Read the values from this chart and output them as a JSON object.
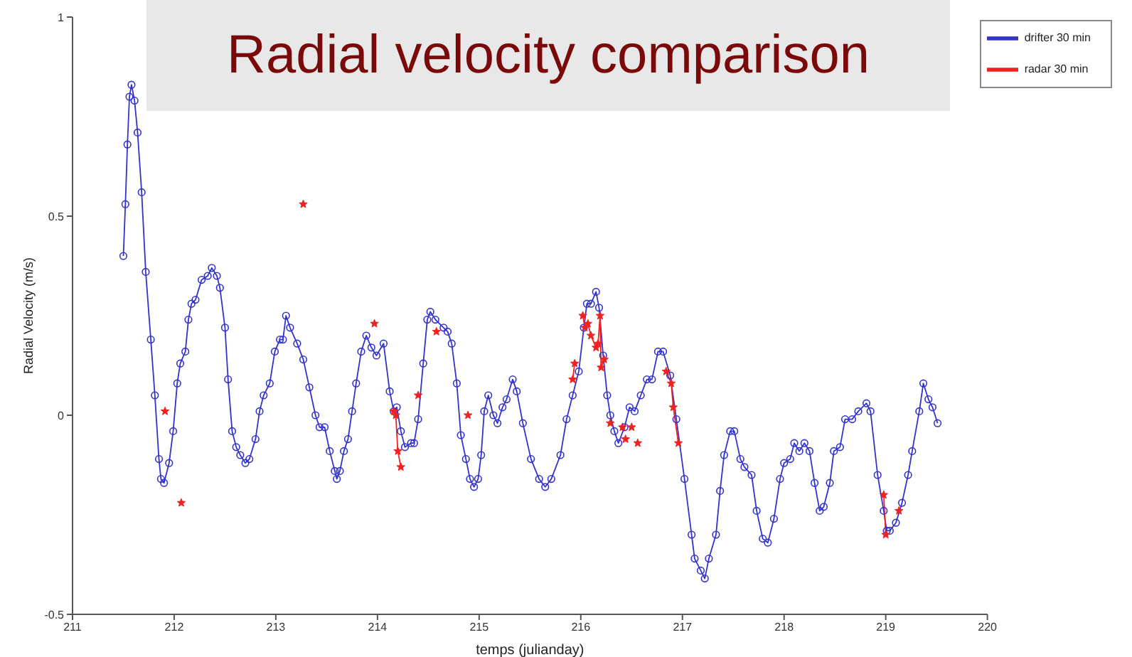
{
  "chart_data": {
    "type": "line",
    "title": "Radial velocity comparison",
    "xlabel": "temps (julianday)",
    "ylabel": "Radial Velocity (m/s)",
    "xlim": [
      211,
      220
    ],
    "xticks": [
      211,
      212,
      213,
      214,
      215,
      216,
      217,
      218,
      219,
      220
    ],
    "ylim": [
      -0.5,
      1
    ],
    "yticks": [
      -0.5,
      0,
      0.5,
      1
    ],
    "legend": "top right",
    "line_style": "solid",
    "series": [
      {
        "name": "drifter 30 min",
        "color": "#3333cc",
        "marker": "circle",
        "x": [
          211.5,
          211.52,
          211.54,
          211.56,
          211.58,
          211.61,
          211.64,
          211.68,
          211.72,
          211.77,
          211.81,
          211.85,
          211.87,
          211.9,
          211.95,
          211.99,
          212.03,
          212.06,
          212.11,
          212.14,
          212.17,
          212.21,
          212.27,
          212.33,
          212.37,
          212.42,
          212.45,
          212.5,
          212.53,
          212.57,
          212.61,
          212.65,
          212.7,
          212.74,
          212.8,
          212.84,
          212.88,
          212.94,
          212.99,
          213.04,
          213.07,
          213.1,
          213.14,
          213.21,
          213.27,
          213.33,
          213.39,
          213.43,
          213.48,
          213.53,
          213.58,
          213.6,
          213.63,
          213.67,
          213.71,
          213.75,
          213.79,
          213.84,
          213.89,
          213.94,
          213.99,
          214.06,
          214.12,
          214.16,
          214.19,
          214.23,
          214.27,
          214.33,
          214.36,
          214.4,
          214.45,
          214.49,
          214.52,
          214.57,
          214.65,
          214.69,
          214.73,
          214.78,
          214.82,
          214.87,
          214.91,
          214.95,
          214.99,
          215.02,
          215.05,
          215.09,
          215.14,
          215.18,
          215.23,
          215.27,
          215.33,
          215.37,
          215.43,
          215.51,
          215.59,
          215.65,
          215.71,
          215.8,
          215.86,
          215.92,
          215.98,
          216.03,
          216.06,
          216.1,
          216.15,
          216.18,
          216.22,
          216.26,
          216.29,
          216.33,
          216.37,
          216.43,
          216.48,
          216.53,
          216.59,
          216.65,
          216.7,
          216.76,
          216.81,
          216.88,
          216.94,
          217.02,
          217.09,
          217.12,
          217.18,
          217.22,
          217.26,
          217.33,
          217.37,
          217.41,
          217.47,
          217.51,
          217.57,
          217.61,
          217.68,
          217.73,
          217.79,
          217.84,
          217.9,
          217.96,
          218.0,
          218.06,
          218.1,
          218.15,
          218.2,
          218.25,
          218.3,
          218.35,
          218.39,
          218.45,
          218.49,
          218.55,
          218.6,
          218.67,
          218.73,
          218.81,
          218.85,
          218.92,
          218.98,
          219.01,
          219.04,
          219.1,
          219.16,
          219.22,
          219.26,
          219.33,
          219.37,
          219.42,
          219.46,
          219.51
        ],
        "values": [
          0.4,
          0.53,
          0.68,
          0.8,
          0.83,
          0.79,
          0.71,
          0.56,
          0.36,
          0.19,
          0.05,
          -0.11,
          -0.16,
          -0.17,
          -0.12,
          -0.04,
          0.08,
          0.13,
          0.16,
          0.24,
          0.28,
          0.29,
          0.34,
          0.35,
          0.37,
          0.35,
          0.32,
          0.22,
          0.09,
          -0.04,
          -0.08,
          -0.1,
          -0.12,
          -0.11,
          -0.06,
          0.01,
          0.05,
          0.08,
          0.16,
          0.19,
          0.19,
          0.25,
          0.22,
          0.18,
          0.14,
          0.07,
          0.0,
          -0.03,
          -0.03,
          -0.09,
          -0.14,
          -0.16,
          -0.14,
          -0.09,
          -0.06,
          0.01,
          0.08,
          0.16,
          0.2,
          0.17,
          0.15,
          0.18,
          0.06,
          0.01,
          0.02,
          -0.04,
          -0.08,
          -0.07,
          -0.07,
          -0.01,
          0.13,
          0.24,
          0.26,
          0.24,
          0.22,
          0.21,
          0.18,
          0.08,
          -0.05,
          -0.11,
          -0.16,
          -0.18,
          -0.16,
          -0.1,
          0.01,
          0.05,
          0.0,
          -0.02,
          0.02,
          0.04,
          0.09,
          0.06,
          -0.02,
          -0.11,
          -0.16,
          -0.18,
          -0.16,
          -0.1,
          -0.01,
          0.05,
          0.11,
          0.22,
          0.28,
          0.28,
          0.31,
          0.27,
          0.15,
          0.05,
          0.0,
          -0.04,
          -0.07,
          -0.03,
          0.02,
          0.01,
          0.05,
          0.09,
          0.09,
          0.16,
          0.16,
          0.1,
          -0.01,
          -0.16,
          -0.3,
          -0.36,
          -0.39,
          -0.41,
          -0.36,
          -0.3,
          -0.19,
          -0.1,
          -0.04,
          -0.04,
          -0.11,
          -0.13,
          -0.15,
          -0.24,
          -0.31,
          -0.32,
          -0.26,
          -0.16,
          -0.12,
          -0.11,
          -0.07,
          -0.09,
          -0.07,
          -0.09,
          -0.17,
          -0.24,
          -0.23,
          -0.17,
          -0.09,
          -0.08,
          -0.01,
          -0.01,
          0.01,
          0.03,
          0.01,
          -0.15,
          -0.24,
          -0.29,
          -0.29,
          -0.27,
          -0.22,
          -0.15,
          -0.09,
          0.01,
          0.08,
          0.04,
          0.02,
          -0.02
        ]
      },
      {
        "name": "radar 30 min",
        "color": "#ee2222",
        "marker": "star",
        "x": [
          211.91,
          211.99,
          212.07,
          212.6,
          213.27,
          213.6,
          213.97,
          214.05,
          214.16,
          214.18,
          214.2,
          214.23,
          214.3,
          214.4,
          214.5,
          214.58,
          214.7,
          214.89,
          215.4,
          215.92,
          215.94,
          215.98,
          216.02,
          216.04,
          216.07,
          216.1,
          216.15,
          216.17,
          216.19,
          216.2,
          216.23,
          216.26,
          216.29,
          216.35,
          216.41,
          216.43,
          216.44,
          216.47,
          216.5,
          216.53,
          216.56,
          216.7,
          216.84,
          216.89,
          216.91,
          216.96,
          218.0,
          218.98,
          219.0,
          219.06,
          219.13
        ],
        "values": [
          0.01,
          null,
          -0.22,
          null,
          0.53,
          null,
          0.23,
          null,
          0.01,
          0.0,
          -0.09,
          -0.13,
          null,
          0.05,
          null,
          0.21,
          null,
          0.0,
          null,
          0.09,
          0.13,
          null,
          0.25,
          0.22,
          0.23,
          0.2,
          0.17,
          0.18,
          0.25,
          0.12,
          0.14,
          null,
          -0.02,
          null,
          -0.03,
          null,
          -0.06,
          null,
          -0.03,
          null,
          -0.07,
          null,
          0.11,
          0.08,
          0.02,
          -0.07,
          null,
          -0.2,
          -0.3,
          null,
          -0.24
        ]
      }
    ]
  }
}
